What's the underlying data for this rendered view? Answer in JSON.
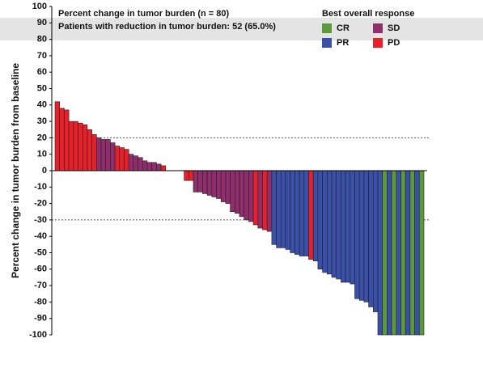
{
  "chart_data": {
    "type": "waterfall",
    "title": "Percent change in tumor burden (n = 80)",
    "subtitle": "Patients with reduction in tumor burden: 52 (65.0%)",
    "y_label": "Percent change in tumor burden from baseline",
    "legend_title": "Best overall response",
    "legend": [
      {
        "name": "CR",
        "color": "#5b9a3c"
      },
      {
        "name": "SD",
        "color": "#8f2d6d"
      },
      {
        "name": "PR",
        "color": "#3a4fa8"
      },
      {
        "name": "PD",
        "color": "#e8202a"
      }
    ],
    "values": [
      42,
      38,
      37,
      30,
      30,
      29,
      28,
      25,
      22,
      20,
      19,
      19,
      17,
      15,
      14,
      13,
      10,
      9,
      8,
      6,
      5,
      5,
      4,
      3,
      0,
      0,
      0,
      0,
      -6,
      -6,
      -13,
      -13,
      -14,
      -15,
      -16,
      -17,
      -19,
      -20,
      -25,
      -26,
      -28,
      -30,
      -31,
      -33,
      -35,
      -36,
      -37,
      -45,
      -47,
      -47,
      -48,
      -50,
      -51,
      -52,
      -52,
      -54,
      -55,
      -60,
      -62,
      -63,
      -65,
      -66,
      -68,
      -68,
      -69,
      -78,
      -79,
      -80,
      -83,
      -86,
      -100,
      -100,
      -100,
      -100,
      -100,
      -100,
      -100,
      -100,
      -100,
      -100
    ],
    "colors": [
      "#e8202a",
      "#e8202a",
      "#e8202a",
      "#e8202a",
      "#e8202a",
      "#e8202a",
      "#e8202a",
      "#e8202a",
      "#e8202a",
      "#8f2d6d",
      "#8f2d6d",
      "#8f2d6d",
      "#8f2d6d",
      "#e8202a",
      "#e8202a",
      "#e8202a",
      "#8f2d6d",
      "#8f2d6d",
      "#8f2d6d",
      "#8f2d6d",
      "#8f2d6d",
      "#8f2d6d",
      "#8f2d6d",
      "#e8202a",
      "#8f2d6d",
      "#8f2d6d",
      "#8f2d6d",
      "#8f2d6d",
      "#e8202a",
      "#e8202a",
      "#8f2d6d",
      "#8f2d6d",
      "#8f2d6d",
      "#8f2d6d",
      "#8f2d6d",
      "#8f2d6d",
      "#8f2d6d",
      "#8f2d6d",
      "#8f2d6d",
      "#8f2d6d",
      "#8f2d6d",
      "#8f2d6d",
      "#8f2d6d",
      "#e8202a",
      "#8f2d6d",
      "#e8202a",
      "#8f2d6d",
      "#3a4fa8",
      "#3a4fa8",
      "#3a4fa8",
      "#3a4fa8",
      "#3a4fa8",
      "#3a4fa8",
      "#3a4fa8",
      "#3a4fa8",
      "#e8202a",
      "#3a4fa8",
      "#3a4fa8",
      "#3a4fa8",
      "#3a4fa8",
      "#3a4fa8",
      "#3a4fa8",
      "#3a4fa8",
      "#3a4fa8",
      "#3a4fa8",
      "#3a4fa8",
      "#3a4fa8",
      "#3a4fa8",
      "#3a4fa8",
      "#3a4fa8",
      "#3a4fa8",
      "#5b9a3c",
      "#3a4fa8",
      "#5b9a3c",
      "#3a4fa8",
      "#5b9a3c",
      "#3a4fa8",
      "#5b9a3c",
      "#3a4fa8",
      "#5b9a3c"
    ],
    "reference_lines": [
      20,
      -30
    ],
    "ylim": [
      -100,
      100
    ],
    "yticks": [
      -100,
      -90,
      -80,
      -70,
      -60,
      -50,
      -40,
      -30,
      -20,
      -10,
      0,
      10,
      20,
      30,
      40,
      50,
      60,
      70,
      80,
      90,
      100
    ]
  }
}
